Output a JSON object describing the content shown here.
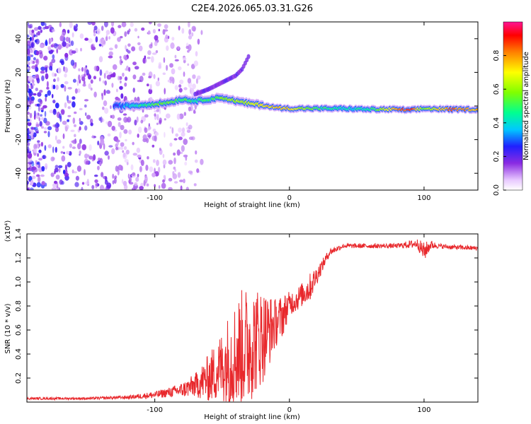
{
  "title": "C2E4.2026.065.03.31.G26",
  "colors": {
    "snr_line": "#e8282c",
    "frame": "#000000",
    "noise_dots": "#7a2cf0"
  },
  "chart_data": [
    {
      "type": "heatmap",
      "name": "spectrogram",
      "xlabel": "Height of straight line (km)",
      "ylabel": "Frequency (Hz)",
      "xlim": [
        -195,
        140
      ],
      "ylim": [
        -50,
        50
      ],
      "xticks": [
        -100,
        0,
        100
      ],
      "xtick_labels": [
        "-100",
        "0",
        "100"
      ],
      "yticks": [
        -40,
        -20,
        0,
        20,
        40
      ],
      "ytick_labels": [
        "-40",
        "-20",
        "0",
        "20",
        "40"
      ],
      "colorbar": {
        "label": "Normalized spectral amplitude",
        "range": [
          0,
          1
        ],
        "ticks": [
          0.0,
          0.2,
          0.4,
          0.6,
          0.8
        ],
        "tick_labels": [
          "0.0",
          "0.2",
          "0.4",
          "0.6",
          "0.8"
        ],
        "colormap": "rainbow (white-violet-blue-cyan-green-yellow-red-magenta)"
      },
      "ridge": {
        "description": "Doppler ridge near 0 Hz from about -130 km onward; positive-frequency branch rising to about 30 Hz near -30 km",
        "x": [
          -130,
          -110,
          -90,
          -80,
          -70,
          -60,
          -50,
          -40,
          -30,
          -20,
          -10,
          0,
          20,
          40,
          60,
          80,
          90,
          100,
          120,
          140
        ],
        "freq": [
          0,
          0.5,
          2,
          4,
          3,
          4,
          5,
          3,
          1.5,
          0.5,
          -1,
          -1.5,
          -1.5,
          -1.5,
          -2,
          -2,
          -2.5,
          -1.5,
          -2,
          -2
        ],
        "amplitude": [
          0.25,
          0.45,
          0.55,
          0.5,
          0.45,
          0.5,
          0.55,
          0.6,
          0.65,
          0.7,
          0.75,
          0.75,
          0.5,
          0.4,
          0.45,
          0.8,
          0.9,
          0.55,
          0.85,
          0.75
        ]
      },
      "upper_branch": {
        "x": [
          -70,
          -60,
          -50,
          -40,
          -35,
          -30
        ],
        "freq": [
          7,
          10,
          14,
          18,
          22,
          30
        ]
      },
      "noise_region": {
        "x_range": [
          -195,
          -75
        ],
        "freq_range": [
          -50,
          50
        ]
      }
    },
    {
      "type": "line",
      "name": "snr",
      "xlabel": "Height of straight line (km)",
      "ylabel": "SNR (10 * v/v)",
      "y_multiplier_label": "(x10⁴)",
      "xlim": [
        -195,
        140
      ],
      "ylim": [
        0,
        1.4
      ],
      "xticks": [
        -100,
        0,
        100
      ],
      "xtick_labels": [
        "-100",
        "0",
        "100"
      ],
      "yticks": [
        0.2,
        0.4,
        0.6,
        0.8,
        1.0,
        1.2,
        1.4
      ],
      "ytick_labels": [
        "0.2",
        "0.4",
        "0.6",
        "0.8",
        "1.0",
        "1.2",
        "1.4"
      ],
      "series": [
        {
          "name": "SNR",
          "x": [
            -195,
            -150,
            -120,
            -100,
            -90,
            -80,
            -70,
            -60,
            -50,
            -45,
            -40,
            -35,
            -30,
            -25,
            -20,
            -15,
            -10,
            -5,
            0,
            5,
            10,
            15,
            20,
            25,
            30,
            40,
            60,
            80,
            95,
            100,
            105,
            110,
            120,
            140
          ],
          "y": [
            0.03,
            0.03,
            0.04,
            0.06,
            0.08,
            0.1,
            0.14,
            0.2,
            0.3,
            0.35,
            0.4,
            0.45,
            0.48,
            0.52,
            0.55,
            0.6,
            0.66,
            0.72,
            0.82,
            0.85,
            0.9,
            0.95,
            1.05,
            1.15,
            1.25,
            1.3,
            1.3,
            1.3,
            1.32,
            1.25,
            1.31,
            1.3,
            1.29,
            1.28
          ],
          "amplitude": [
            0.01,
            0.01,
            0.015,
            0.03,
            0.04,
            0.06,
            0.1,
            0.2,
            0.3,
            0.4,
            0.45,
            0.5,
            0.5,
            0.45,
            0.4,
            0.3,
            0.2,
            0.18,
            0.1,
            0.1,
            0.1,
            0.12,
            0.08,
            0.05,
            0.03,
            0.02,
            0.02,
            0.02,
            0.04,
            0.08,
            0.04,
            0.02,
            0.02,
            0.02
          ]
        }
      ]
    }
  ]
}
